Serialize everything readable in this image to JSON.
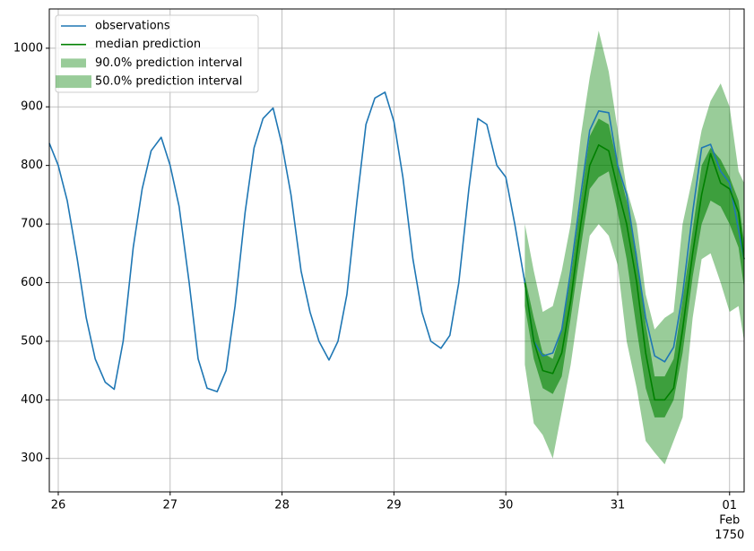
{
  "chart_data": {
    "type": "line",
    "xlim": [
      25.92,
      32.13
    ],
    "ylim": [
      243,
      1067
    ],
    "xticks": [
      26,
      27,
      28,
      29,
      30,
      31,
      {
        "value": 32,
        "label": "01\nFeb\n1750"
      }
    ],
    "yticks": [
      300,
      400,
      500,
      600,
      700,
      800,
      900,
      1000
    ],
    "grid": true,
    "legend": "upper left",
    "series": [
      {
        "name": "observations",
        "color": "#1f77b4",
        "x": [
          25.92,
          26.0,
          26.08,
          26.17,
          26.25,
          26.33,
          26.42,
          26.5,
          26.58,
          26.67,
          26.75,
          26.83,
          26.92,
          27.0,
          27.08,
          27.17,
          27.25,
          27.33,
          27.42,
          27.5,
          27.58,
          27.67,
          27.75,
          27.83,
          27.92,
          28.0,
          28.08,
          28.17,
          28.25,
          28.33,
          28.42,
          28.5,
          28.58,
          28.67,
          28.75,
          28.83,
          28.92,
          29.0,
          29.08,
          29.17,
          29.25,
          29.33,
          29.42,
          29.5,
          29.58,
          29.67,
          29.75,
          29.83,
          29.92,
          30.0,
          30.08,
          30.17,
          30.25,
          30.33,
          30.42,
          30.5,
          30.58,
          30.67,
          30.75,
          30.83,
          30.92,
          31.0,
          31.08,
          31.17,
          31.25,
          31.33,
          31.42,
          31.5,
          31.58,
          31.67,
          31.75,
          31.83,
          31.92,
          32.0,
          32.08,
          32.13
        ],
        "values": [
          838,
          800,
          740,
          640,
          540,
          470,
          430,
          418,
          500,
          660,
          760,
          825,
          848,
          800,
          730,
          600,
          470,
          420,
          414,
          450,
          560,
          720,
          830,
          880,
          898,
          835,
          750,
          620,
          550,
          500,
          468,
          500,
          580,
          740,
          870,
          915,
          925,
          875,
          780,
          640,
          550,
          500,
          488,
          510,
          600,
          760,
          880,
          870,
          800,
          780,
          700,
          600,
          500,
          475,
          480,
          520,
          620,
          750,
          860,
          893,
          890,
          800,
          750,
          640,
          540,
          475,
          465,
          490,
          580,
          720,
          830,
          836,
          790,
          770,
          690,
          640
        ]
      },
      {
        "name": "median prediction",
        "color": "#008000",
        "x": [
          30.17,
          30.25,
          30.33,
          30.42,
          30.5,
          30.58,
          30.67,
          30.75,
          30.83,
          30.92,
          31.0,
          31.08,
          31.17,
          31.25,
          31.33,
          31.42,
          31.5,
          31.58,
          31.67,
          31.75,
          31.83,
          31.92,
          32.0,
          32.08,
          32.13
        ],
        "values": [
          600,
          500,
          450,
          445,
          480,
          570,
          700,
          800,
          835,
          825,
          760,
          700,
          600,
          480,
          400,
          400,
          420,
          520,
          650,
          750,
          820,
          770,
          760,
          720,
          640
        ]
      },
      {
        "name": "90.0% prediction interval",
        "color": "#008000",
        "alpha": 0.4,
        "x": [
          30.17,
          30.25,
          30.33,
          30.42,
          30.5,
          30.58,
          30.67,
          30.75,
          30.83,
          30.92,
          31.0,
          31.08,
          31.17,
          31.25,
          31.33,
          31.42,
          31.5,
          31.58,
          31.67,
          31.75,
          31.83,
          31.92,
          32.0,
          32.08,
          32.13
        ],
        "lower": [
          460,
          360,
          340,
          300,
          380,
          460,
          580,
          680,
          700,
          680,
          630,
          500,
          420,
          330,
          310,
          290,
          330,
          370,
          540,
          640,
          650,
          600,
          550,
          560,
          500
        ],
        "upper": [
          700,
          620,
          550,
          560,
          620,
          700,
          850,
          950,
          1030,
          960,
          860,
          760,
          700,
          580,
          520,
          540,
          550,
          700,
          780,
          860,
          910,
          940,
          900,
          790,
          770
        ]
      },
      {
        "name": "50.0% prediction interval",
        "color": "#008000",
        "alpha": 0.6,
        "x": [
          30.17,
          30.25,
          30.33,
          30.42,
          30.5,
          30.58,
          30.67,
          30.75,
          30.83,
          30.92,
          31.0,
          31.08,
          31.17,
          31.25,
          31.33,
          31.42,
          31.5,
          31.58,
          31.67,
          31.75,
          31.83,
          31.92,
          32.0,
          32.08,
          32.13
        ],
        "lower": [
          560,
          470,
          420,
          410,
          440,
          540,
          660,
          760,
          780,
          790,
          720,
          640,
          520,
          420,
          370,
          370,
          400,
          480,
          610,
          700,
          740,
          730,
          700,
          660,
          590
        ],
        "upper": [
          610,
          540,
          480,
          470,
          520,
          610,
          740,
          850,
          880,
          870,
          800,
          740,
          650,
          530,
          440,
          440,
          470,
          570,
          690,
          800,
          830,
          810,
          780,
          740,
          670
        ]
      }
    ]
  }
}
